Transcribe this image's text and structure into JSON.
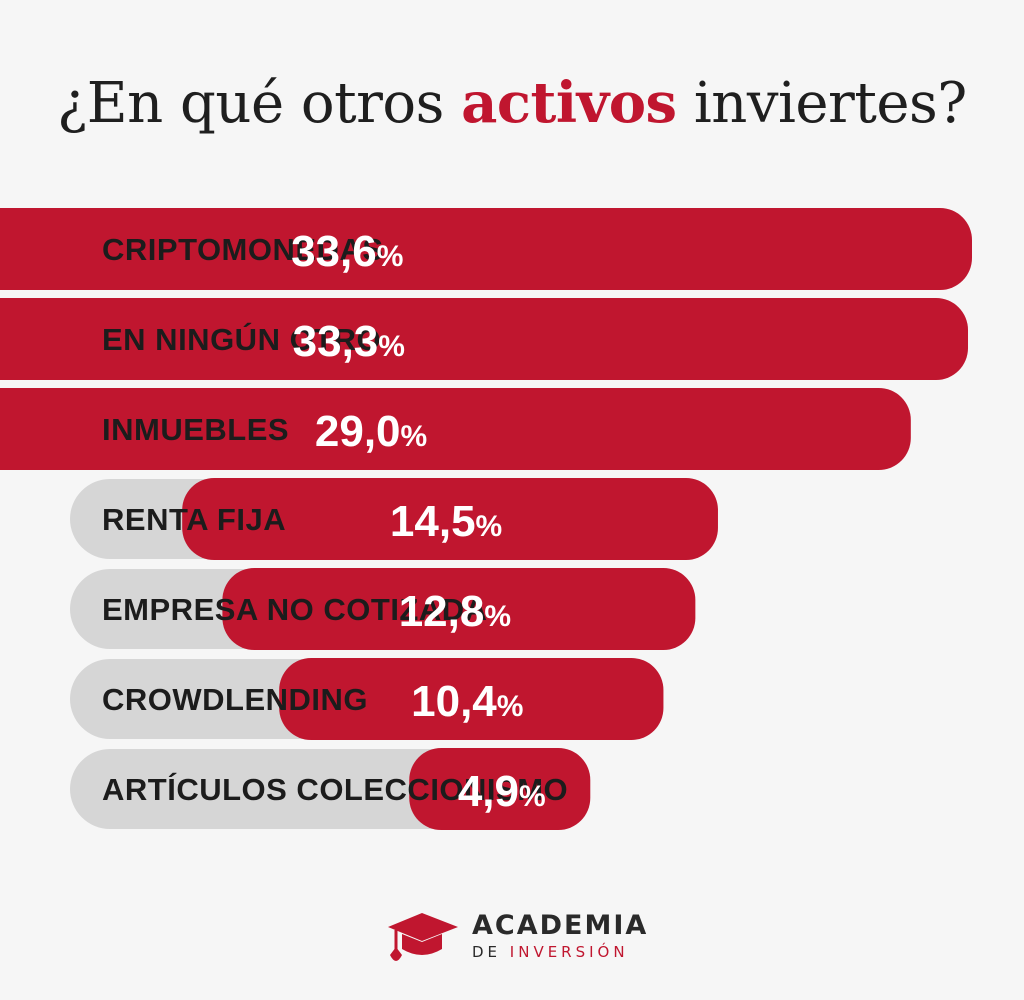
{
  "title": {
    "before": "¿En qué otros ",
    "highlight": "activos",
    "after": " inviertes?"
  },
  "colors": {
    "accent": "#c0162f",
    "track": "#d6d6d6",
    "background": "#f6f6f6",
    "text": "#1c1c1c"
  },
  "chart_data": {
    "type": "bar",
    "orientation": "horizontal",
    "title": "¿En qué otros activos inviertes?",
    "categories": [
      "CRIPTOMONEDAS",
      "EN NINGÚN OTRO",
      "INMUEBLES",
      "RENTA FIJA",
      "EMPRESA NO COTIZADA",
      "CROWDLENDING",
      "ARTÍCULOS COLECCIONISMO"
    ],
    "values": [
      33.6,
      33.3,
      29.0,
      14.5,
      12.8,
      10.4,
      4.9
    ],
    "value_labels": [
      "33,6",
      "33,3",
      "29,0",
      "14,5",
      "12,8",
      "10,4",
      "4,9"
    ],
    "unit": "%",
    "grid": false,
    "legend": "none"
  },
  "brand": {
    "icon": "graduation-cap-icon",
    "line1": "ACADEMIA",
    "line2_a": "DE ",
    "line2_b": "INVERSIÓN"
  }
}
